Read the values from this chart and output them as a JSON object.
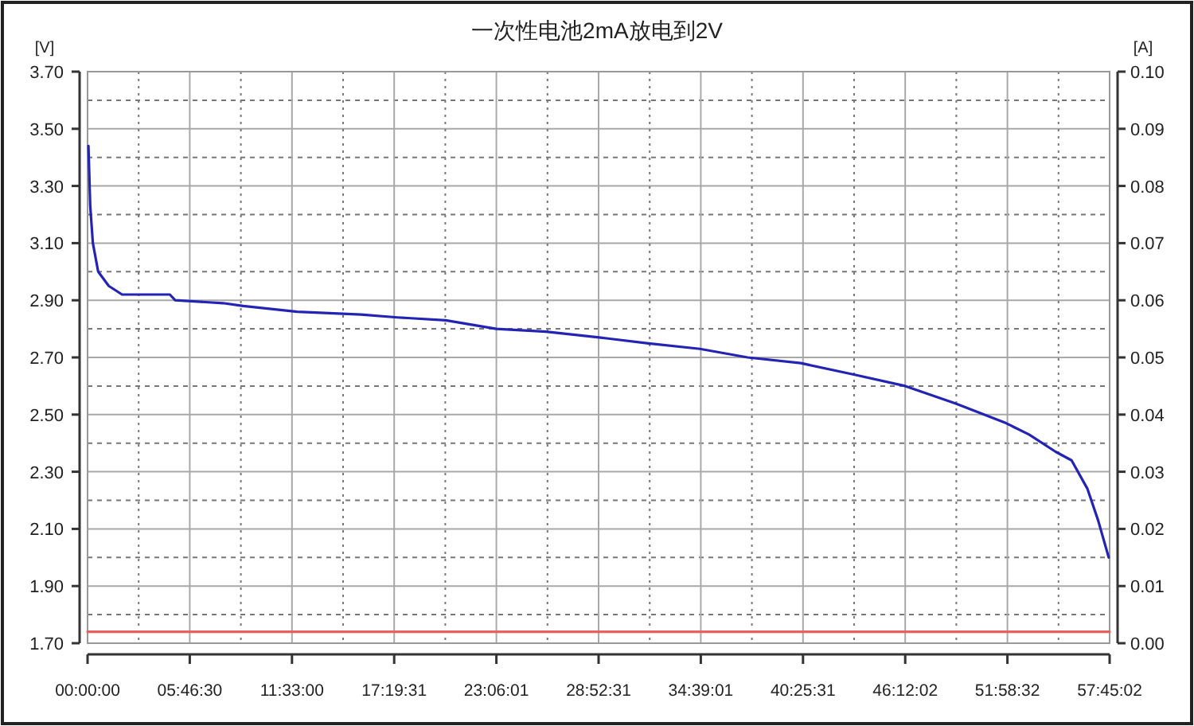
{
  "chart_data": {
    "type": "line",
    "title": "一次性电池2mA放电到2V",
    "ylabel": "[V]",
    "y2label": "[A]",
    "xlim": [
      0,
      57.7506
    ],
    "xticks": [
      {
        "value": 0,
        "label": "00:00:00"
      },
      {
        "value": 2.8875,
        "label": null
      },
      {
        "value": 5.775,
        "label": "05:46:30"
      },
      {
        "value": 8.6625,
        "label": null
      },
      {
        "value": 11.55,
        "label": "11:33:00"
      },
      {
        "value": 14.4376,
        "label": null
      },
      {
        "value": 17.3253,
        "label": "17:19:31"
      },
      {
        "value": 20.2128,
        "label": null
      },
      {
        "value": 23.1003,
        "label": "23:06:01"
      },
      {
        "value": 25.9878,
        "label": null
      },
      {
        "value": 28.8753,
        "label": "28:52:31"
      },
      {
        "value": 31.7628,
        "label": null
      },
      {
        "value": 34.6503,
        "label": "34:39:01"
      },
      {
        "value": 37.5378,
        "label": null
      },
      {
        "value": 40.4253,
        "label": "40:25:31"
      },
      {
        "value": 43.313,
        "label": null
      },
      {
        "value": 46.2006,
        "label": "46:12:02"
      },
      {
        "value": 49.0881,
        "label": null
      },
      {
        "value": 51.9756,
        "label": "51:58:32"
      },
      {
        "value": 54.8631,
        "label": null
      },
      {
        "value": 57.7506,
        "label": "57:45:02"
      }
    ],
    "ylim": [
      1.7,
      3.7
    ],
    "yticks": [
      {
        "value": 1.7,
        "label": "1.70"
      },
      {
        "value": 1.8,
        "label": null
      },
      {
        "value": 1.9,
        "label": "1.90"
      },
      {
        "value": 2.0,
        "label": null
      },
      {
        "value": 2.1,
        "label": "2.10"
      },
      {
        "value": 2.2,
        "label": null
      },
      {
        "value": 2.3,
        "label": "2.30"
      },
      {
        "value": 2.4,
        "label": null
      },
      {
        "value": 2.5,
        "label": "2.50"
      },
      {
        "value": 2.6,
        "label": null
      },
      {
        "value": 2.7,
        "label": "2.70"
      },
      {
        "value": 2.8,
        "label": null
      },
      {
        "value": 2.9,
        "label": "2.90"
      },
      {
        "value": 3.0,
        "label": null
      },
      {
        "value": 3.1,
        "label": "3.10"
      },
      {
        "value": 3.2,
        "label": null
      },
      {
        "value": 3.3,
        "label": "3.30"
      },
      {
        "value": 3.4,
        "label": null
      },
      {
        "value": 3.5,
        "label": "3.50"
      },
      {
        "value": 3.6,
        "label": null
      },
      {
        "value": 3.7,
        "label": "3.70"
      }
    ],
    "y2lim": [
      0,
      0.1
    ],
    "y2ticks": [
      {
        "value": 0,
        "label": "0.00"
      },
      {
        "value": 0.01,
        "label": "0.01"
      },
      {
        "value": 0.02,
        "label": "0.02"
      },
      {
        "value": 0.03,
        "label": "0.03"
      },
      {
        "value": 0.04,
        "label": "0.04"
      },
      {
        "value": 0.05,
        "label": "0.05"
      },
      {
        "value": 0.06,
        "label": "0.06"
      },
      {
        "value": 0.07,
        "label": "0.07"
      },
      {
        "value": 0.08,
        "label": "0.08"
      },
      {
        "value": 0.09,
        "label": "0.09"
      },
      {
        "value": 0.1,
        "label": "0.10"
      }
    ],
    "grid": true,
    "marker": "none",
    "line_style": "solid",
    "series": [
      {
        "color": "#2424b4",
        "x": [
          0.05,
          0.15,
          0.3,
          0.6,
          1.2,
          1.95,
          4.65,
          4.95,
          7.65,
          8.8,
          11.85,
          15.45,
          17.5,
          20.24,
          23.1,
          25.9,
          28.9,
          31.6,
          34.6,
          37.3,
          40.3,
          43.3,
          46.2,
          49.0,
          51.9,
          53.2,
          54.7,
          55.6,
          56.5,
          57.1,
          57.7
        ],
        "values": [
          3.44,
          3.23,
          3.1,
          3.0,
          2.95,
          2.92,
          2.92,
          2.9,
          2.89,
          2.88,
          2.86,
          2.85,
          2.84,
          2.83,
          2.8,
          2.79,
          2.77,
          2.75,
          2.73,
          2.7,
          2.68,
          2.64,
          2.6,
          2.54,
          2.47,
          2.43,
          2.37,
          2.34,
          2.24,
          2.13,
          2.0
        ]
      },
      {
        "color": "#e86060",
        "axis": "y2",
        "x": [
          0,
          57.7506
        ],
        "values": [
          0.002,
          0.002
        ]
      }
    ]
  }
}
